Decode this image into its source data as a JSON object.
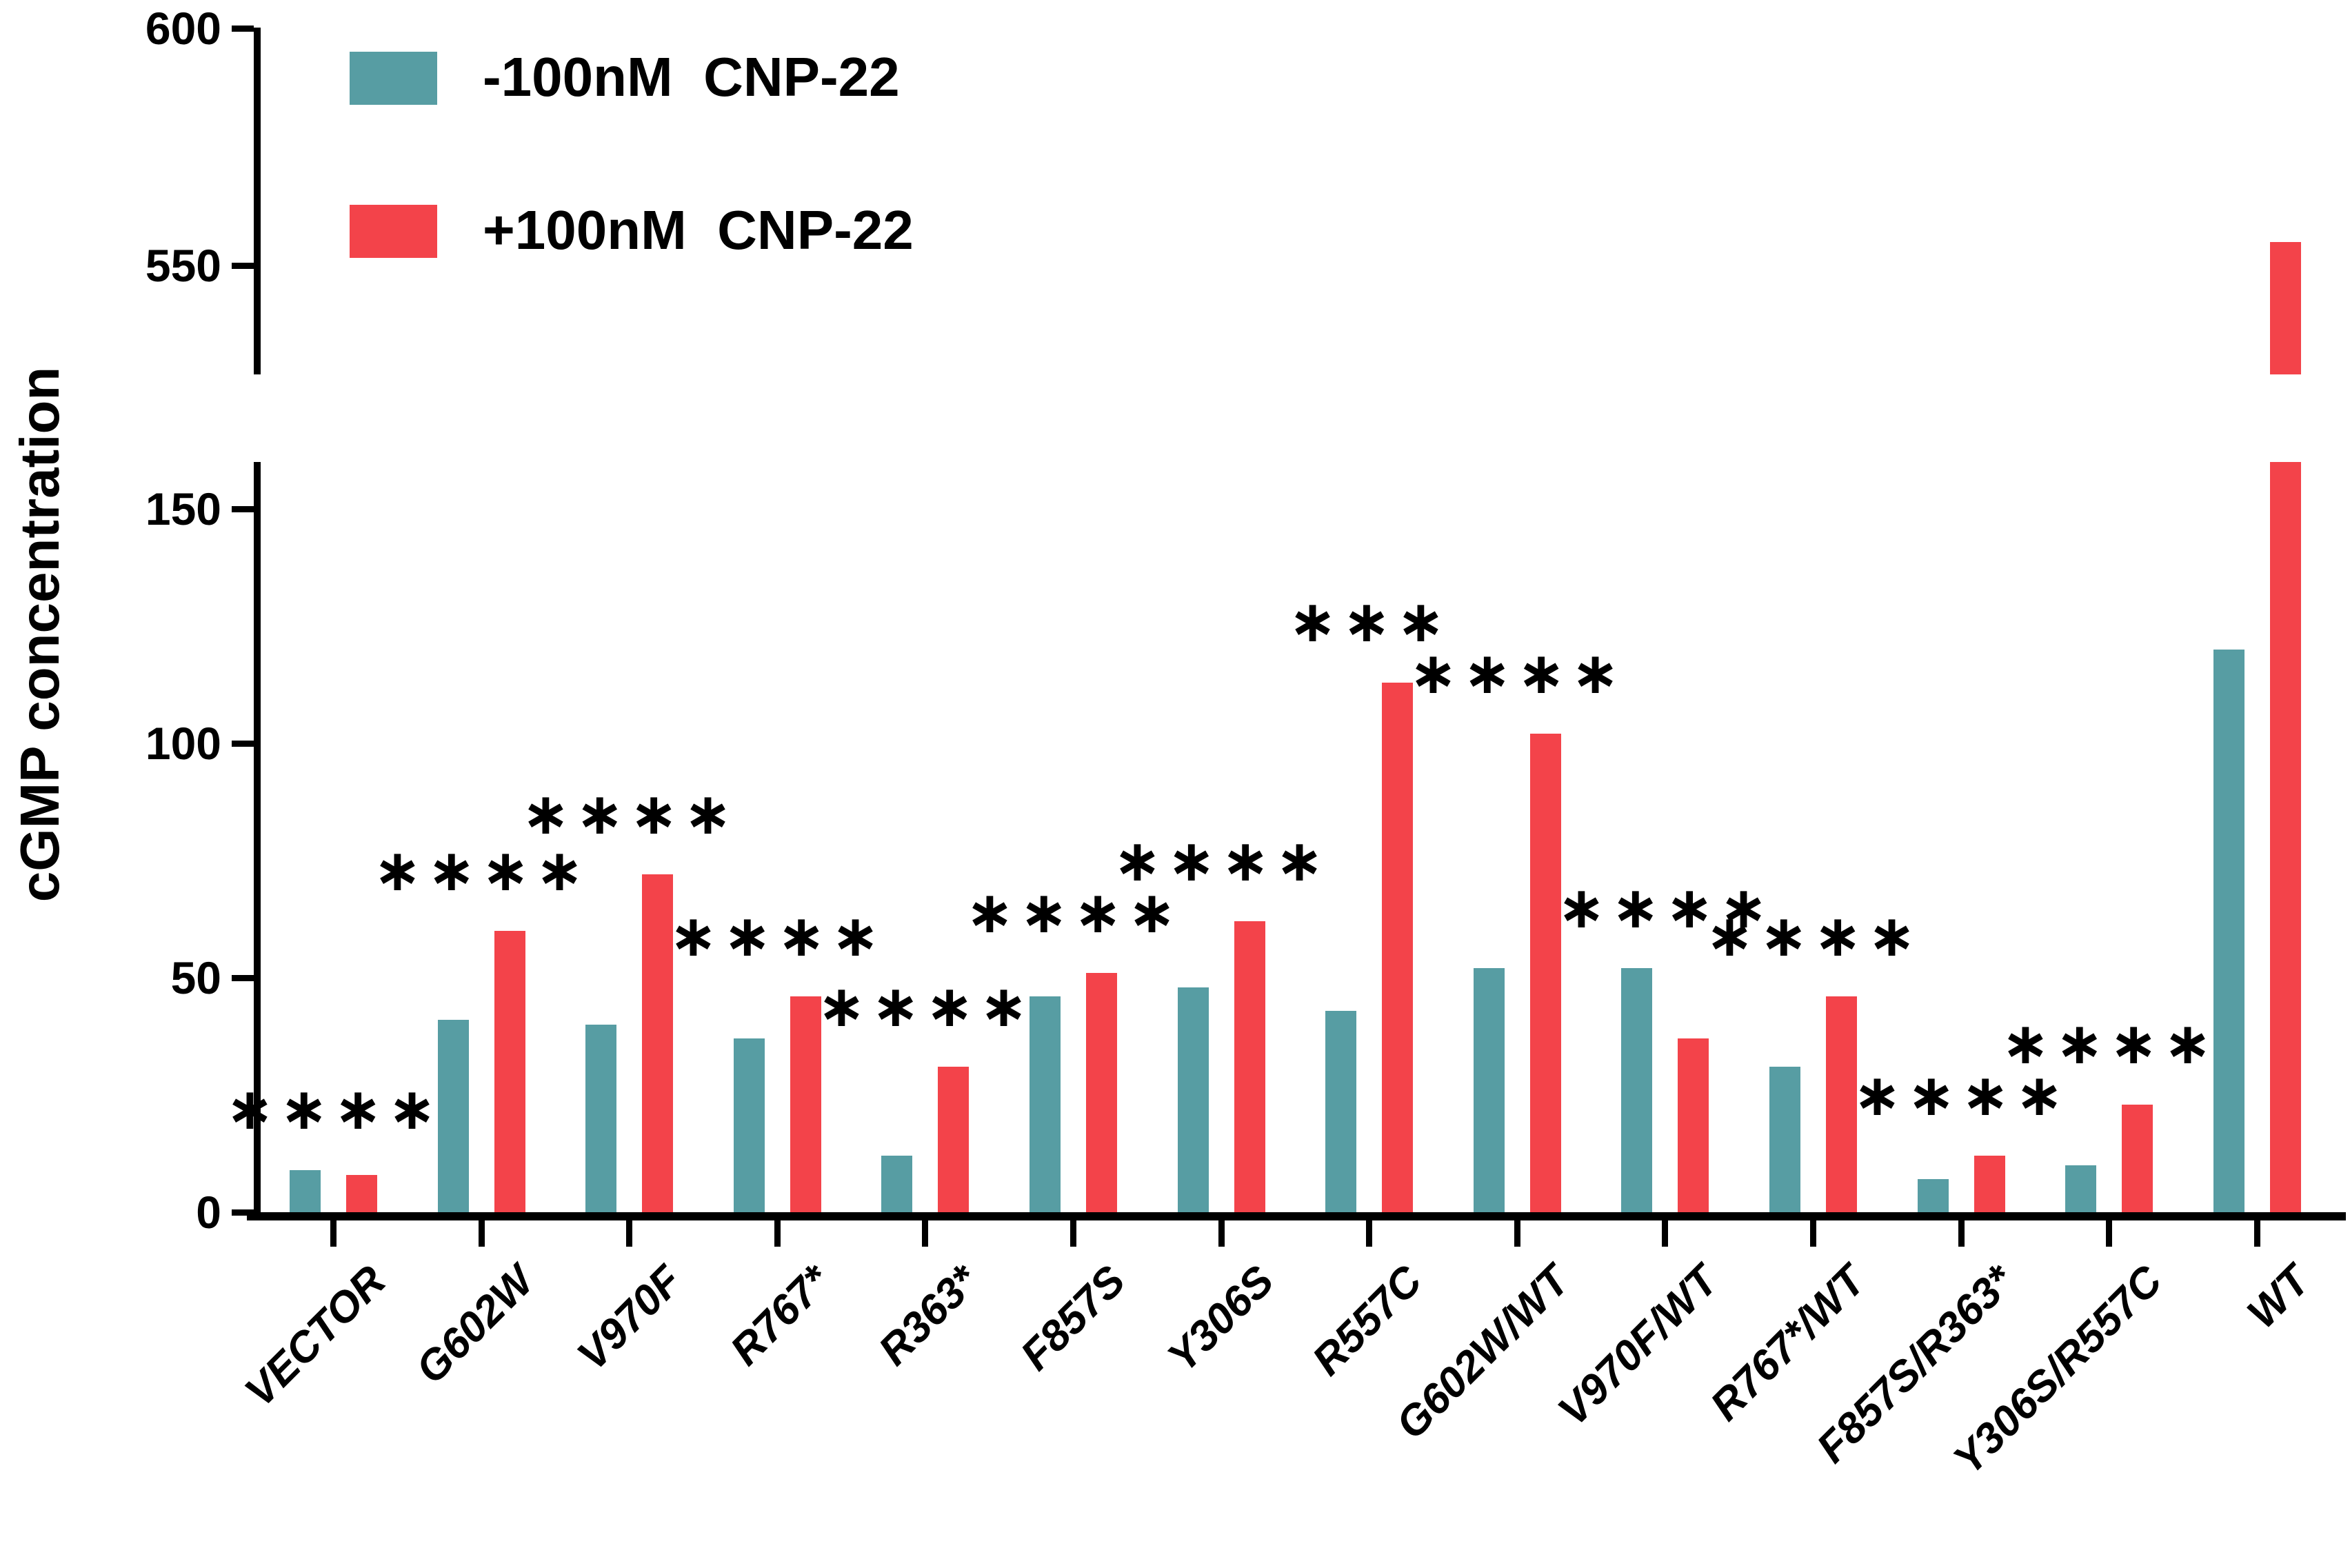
{
  "chart_data": {
    "type": "bar",
    "title": "",
    "ylabel": "cGMP concentration",
    "xlabel": "",
    "grid": false,
    "legend_position": "top-left",
    "broken_y_axis": true,
    "y_axis": {
      "lower_ticks": [
        0,
        50,
        100,
        150
      ],
      "upper_ticks": [
        550,
        600
      ],
      "lower_range": [
        0,
        160
      ],
      "upper_range": [
        527,
        600
      ]
    },
    "categories": [
      "VECTOR",
      "G602W",
      "V970F",
      "R767*",
      "R363*",
      "F857S",
      "Y306S",
      "R557C",
      "G602W/WT",
      "V970F/WT",
      "R767*/WT",
      "F857S/R363*",
      "Y306S/R557C",
      "WT"
    ],
    "series": [
      {
        "name": "-100nM  CNP-22",
        "color": "#579DA3",
        "values": [
          9,
          41,
          40,
          37,
          12,
          46,
          48,
          43,
          52,
          52,
          31,
          7,
          10,
          120
        ]
      },
      {
        "name": "+100nM  CNP-22",
        "color": "#F3434A",
        "values": [
          8,
          60,
          72,
          46,
          31,
          51,
          62,
          113,
          102,
          37,
          46,
          12,
          23,
          555
        ]
      }
    ],
    "significance": [
      "****",
      "****",
      "****",
      "****",
      "****",
      "****",
      "****",
      "***",
      "****",
      "****",
      "****",
      "****",
      "****",
      ""
    ]
  }
}
